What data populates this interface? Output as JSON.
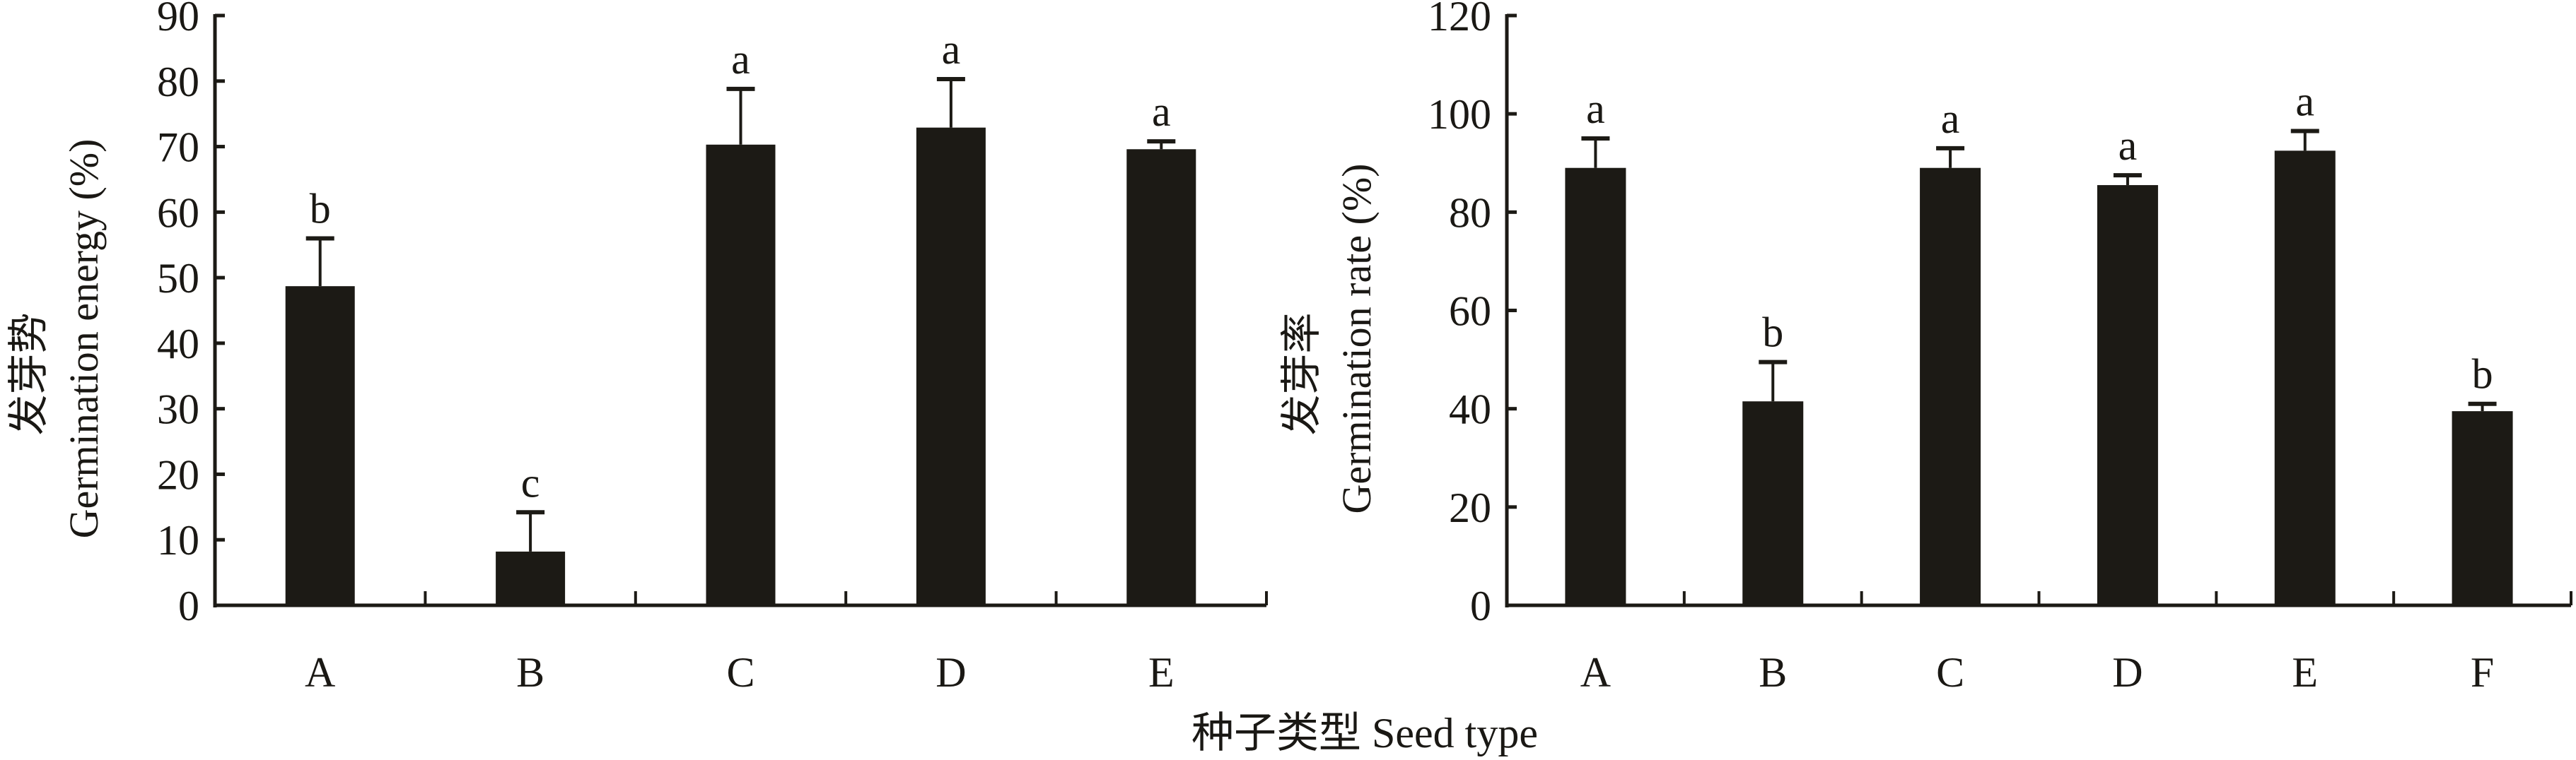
{
  "colors": {
    "bar": "#1c1a15",
    "axis": "#1c1a15"
  },
  "x_axis_title": "种子类型 Seed type",
  "chart_data": [
    {
      "type": "bar",
      "ylabel_cn": "发芽势",
      "ylabel": "Germination energy (%)",
      "xlabel": "种子类型 Seed type",
      "categories": [
        "A",
        "B",
        "C",
        "D",
        "E"
      ],
      "values": [
        48.7,
        8.2,
        70.3,
        72.9,
        69.6
      ],
      "error_upper": [
        56.0,
        14.2,
        78.8,
        80.3,
        70.8
      ],
      "significance": [
        "b",
        "c",
        "a",
        "a",
        "a"
      ],
      "ylim": [
        0,
        90
      ],
      "yticks": [
        "0",
        "10",
        "20",
        "30",
        "40",
        "50",
        "60",
        "70",
        "80",
        "90"
      ],
      "grid": false
    },
    {
      "type": "bar",
      "ylabel_cn": "发芽率",
      "ylabel": "Germination rate (%)",
      "xlabel": "种子类型 Seed type",
      "categories": [
        "A",
        "B",
        "C",
        "D",
        "E",
        "F"
      ],
      "values": [
        89.0,
        41.5,
        89.0,
        85.5,
        92.5,
        39.5
      ],
      "error_upper": [
        95.0,
        49.5,
        93.0,
        87.5,
        96.5,
        41.0
      ],
      "significance": [
        "a",
        "b",
        "a",
        "a",
        "a",
        "b"
      ],
      "ylim": [
        0,
        120
      ],
      "yticks": [
        "0",
        "20",
        "40",
        "60",
        "80",
        "100",
        "120"
      ],
      "grid": false
    }
  ]
}
